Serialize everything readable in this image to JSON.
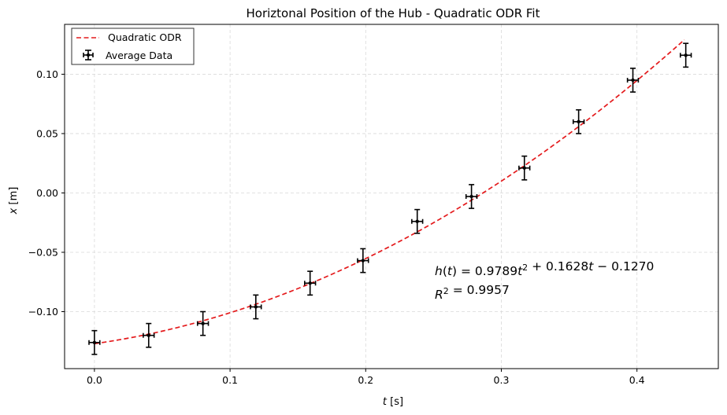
{
  "chart_data": {
    "type": "scatter",
    "title": "Horiztonal Position of the Hub - Quadratic ODR Fit",
    "xlabel": {
      "var": "t",
      "unit": " [s]"
    },
    "ylabel": {
      "var": "x",
      "unit": " [m]"
    },
    "xlim": [
      -0.022,
      0.46
    ],
    "ylim": [
      -0.148,
      0.142
    ],
    "xticks": [
      0.0,
      0.1,
      0.2,
      0.3,
      0.4
    ],
    "xtick_labels": [
      "0.0",
      "0.1",
      "0.2",
      "0.3",
      "0.4"
    ],
    "yticks": [
      -0.1,
      -0.05,
      0.0,
      0.05,
      0.1
    ],
    "ytick_labels": [
      "−0.10",
      "−0.05",
      "0.00",
      "0.05",
      "0.10"
    ],
    "grid": true,
    "legend_position": "top-left",
    "series": [
      {
        "name": "Quadratic ODR",
        "kind": "line",
        "style": "dashed",
        "color": "#e41a1c",
        "coefficients": [
          0.9789,
          0.1628,
          -0.127
        ],
        "x_range": [
          0.0,
          0.435
        ]
      },
      {
        "name": " Average Data",
        "kind": "errorbar",
        "color": "#000000",
        "x": [
          0.0,
          0.04,
          0.08,
          0.119,
          0.159,
          0.198,
          0.238,
          0.278,
          0.317,
          0.357,
          0.397,
          0.436
        ],
        "y": [
          -0.126,
          -0.12,
          -0.11,
          -0.096,
          -0.076,
          -0.057,
          -0.024,
          -0.003,
          0.021,
          0.06,
          0.095,
          0.116
        ],
        "yerr": 0.01,
        "xerr": 0.004
      }
    ],
    "annotations": [
      {
        "parts": [
          {
            "t": "h",
            "italic": true
          },
          {
            "t": "(",
            "italic": false
          },
          {
            "t": "t",
            "italic": true
          },
          {
            "t": ") = 0.9789",
            "italic": false
          },
          {
            "t": "t",
            "italic": true
          },
          {
            "t": "2",
            "sup": true
          },
          {
            "t": " + 0.1628",
            "italic": false
          },
          {
            "t": "t",
            "italic": true
          },
          {
            "t": " − 0.1270",
            "italic": false
          }
        ]
      },
      {
        "parts": [
          {
            "t": "R",
            "italic": true
          },
          {
            "t": "2",
            "sup": true
          },
          {
            "t": " = 0.9957",
            "italic": false
          }
        ]
      }
    ]
  }
}
